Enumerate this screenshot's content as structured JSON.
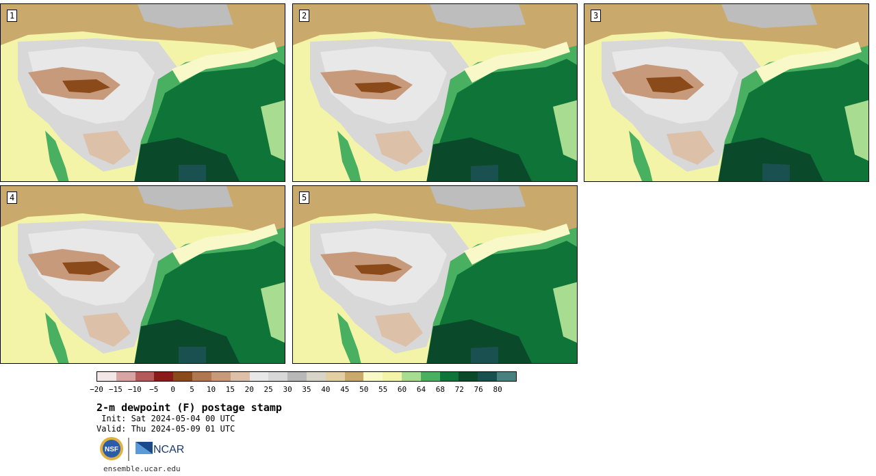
{
  "panels": [
    {
      "label": "1"
    },
    {
      "label": "2"
    },
    {
      "label": "3"
    },
    {
      "label": "4"
    },
    {
      "label": "5"
    }
  ],
  "colorbar": {
    "ticks": [
      "−20",
      "−15",
      "−10",
      "−5",
      "0",
      "5",
      "10",
      "15",
      "20",
      "25",
      "30",
      "35",
      "40",
      "45",
      "50",
      "55",
      "60",
      "64",
      "68",
      "72",
      "76",
      "80"
    ],
    "colors": [
      "#f2e6e6",
      "#d8a5a5",
      "#b55a5a",
      "#8b1a1a",
      "#8a4a1a",
      "#b07850",
      "#c89a7c",
      "#dcc0a8",
      "#e8e8e8",
      "#d8d8d8",
      "#b8b8b8",
      "#d8d4c8",
      "#e2d0a4",
      "#c9aa6c",
      "#f8f8c8",
      "#f4f4a8",
      "#a8dc90",
      "#48b060",
      "#0e7438",
      "#0a4a2a",
      "#1a5050",
      "#4a8080"
    ]
  },
  "header": {
    "title": "2-m dewpoint (F) postage stamp",
    "init": " Init: Sat 2024-05-04 00 UTC",
    "valid": "Valid: Thu 2024-05-09 01 UTC"
  },
  "logos": {
    "nsf": "NSF",
    "ncar": "NCAR"
  },
  "footer": {
    "site": "ensemble.ucar.edu"
  }
}
